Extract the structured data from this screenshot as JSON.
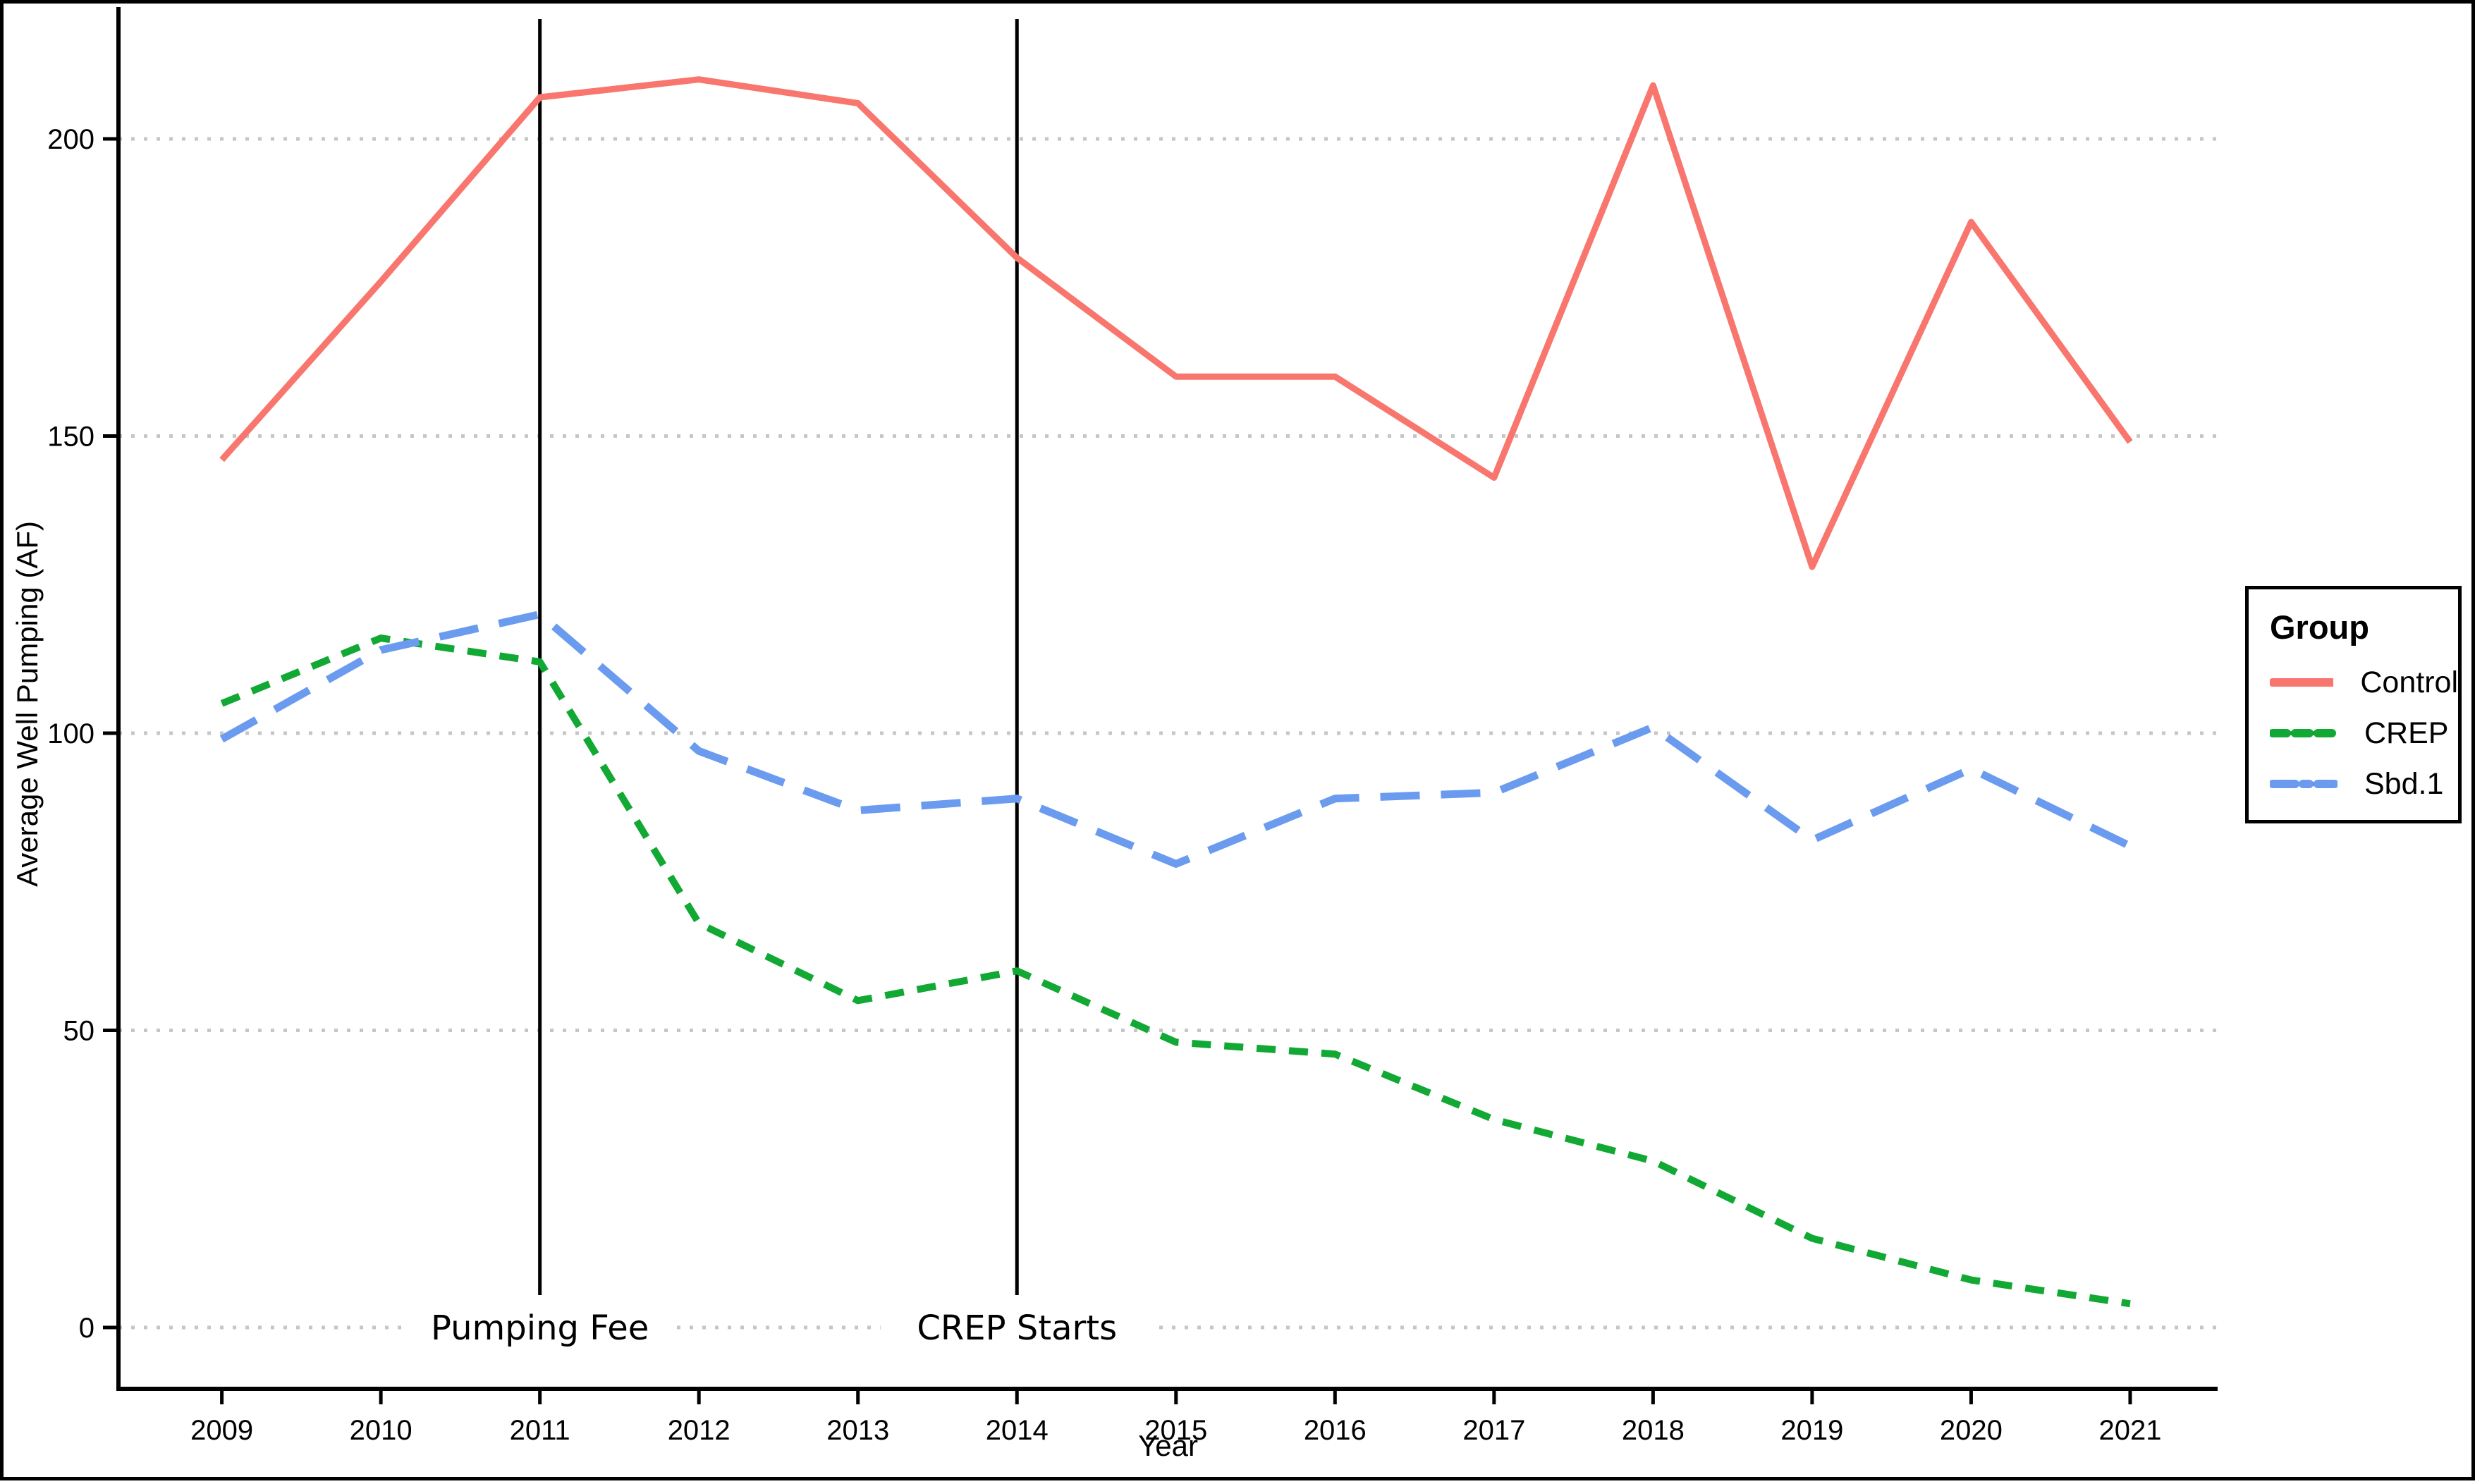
{
  "chart_data": {
    "type": "line",
    "title": "",
    "xlabel": "Year",
    "ylabel": "Average Well Pumping (AF)",
    "x": [
      2009,
      2010,
      2011,
      2012,
      2013,
      2014,
      2015,
      2016,
      2017,
      2018,
      2019,
      2020,
      2021
    ],
    "yticks": [
      0,
      50,
      100,
      150,
      200
    ],
    "ylim": [
      -10.5,
      222
    ],
    "xlim": [
      2008.35,
      2021.55
    ],
    "grid": "horizontal-dotted",
    "series": [
      {
        "name": "Control",
        "color": "#F8766D",
        "linetype": "solid",
        "values": [
          146,
          176,
          207,
          210,
          206,
          180,
          160,
          160,
          143,
          209,
          128,
          186,
          149
        ]
      },
      {
        "name": "CREP",
        "color": "#12A834",
        "linetype": "dashed",
        "values": [
          105,
          116,
          112,
          68,
          55,
          60,
          48,
          46,
          35,
          28,
          15,
          8,
          4
        ]
      },
      {
        "name": "Sbd.1",
        "color": "#6B9BEF",
        "linetype": "longdash",
        "values": [
          99,
          114,
          120,
          97,
          87,
          89,
          78,
          89,
          90,
          101,
          82,
          94,
          81
        ]
      }
    ],
    "vlines": [
      {
        "x": 2011,
        "label": "Pumping Fee"
      },
      {
        "x": 2014,
        "label": "CREP Starts"
      }
    ],
    "legend": {
      "title": "Group",
      "position": "right-center"
    }
  },
  "colors": {
    "background": "#FFFFFF",
    "axis": "#000000",
    "gridline": "#C6C6C6",
    "annotation_text": "#000000"
  }
}
